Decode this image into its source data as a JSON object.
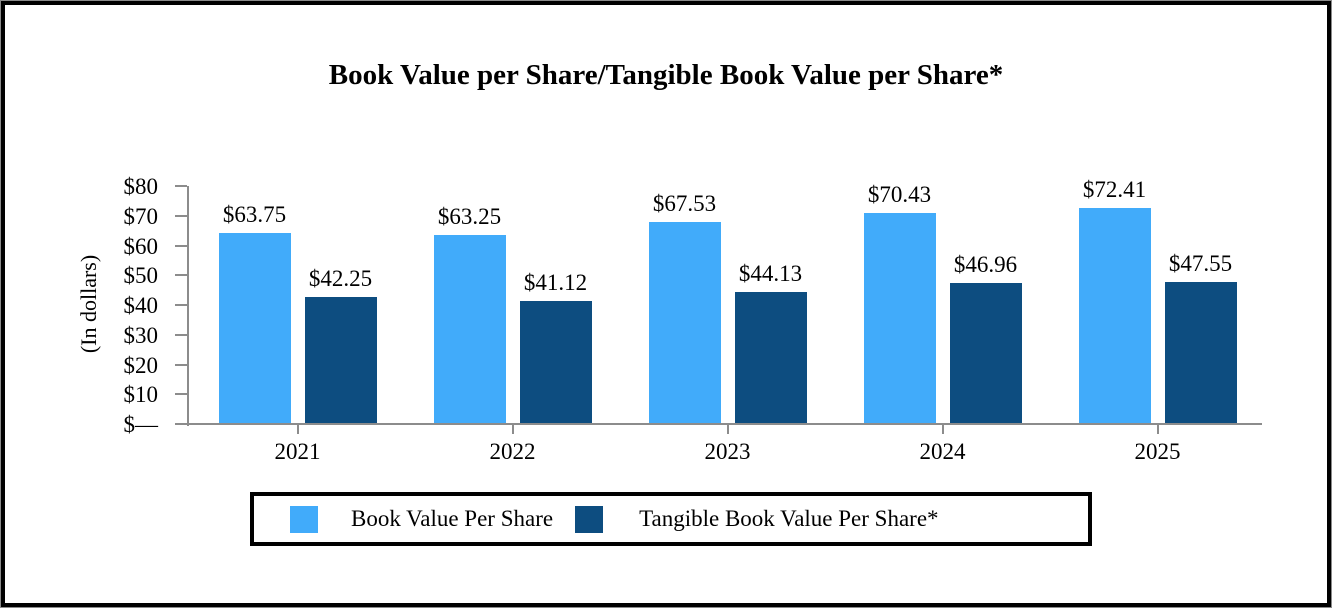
{
  "chart_data": {
    "type": "bar",
    "title": "Book Value per Share/Tangible Book Value per Share*",
    "ylabel": "(In dollars)",
    "xlabel": "",
    "categories": [
      "2021",
      "2022",
      "2023",
      "2024",
      "2025"
    ],
    "series": [
      {
        "name": "Book Value Per Share",
        "color": "#41ABFA",
        "values": [
          63.75,
          63.25,
          67.53,
          70.43,
          72.41
        ]
      },
      {
        "name": "Tangible Book Value Per Share*",
        "color": "#0D4D80",
        "values": [
          42.25,
          41.12,
          44.13,
          46.96,
          47.55
        ]
      }
    ],
    "value_label_prefix": "$",
    "value_label_decimals": 2,
    "ylim": [
      0,
      80
    ],
    "ytick_step": 10,
    "ytick_labels": [
      "$—",
      "$10",
      "$20",
      "$30",
      "$40",
      "$50",
      "$60",
      "$70",
      "$80"
    ],
    "grid": false,
    "legend_position": "bottom-center",
    "colors": {
      "axis": "#8c8c8c",
      "text": "#000000",
      "frame_border": "#000000",
      "legend_border": "#000000",
      "background": "#ffffff"
    }
  }
}
